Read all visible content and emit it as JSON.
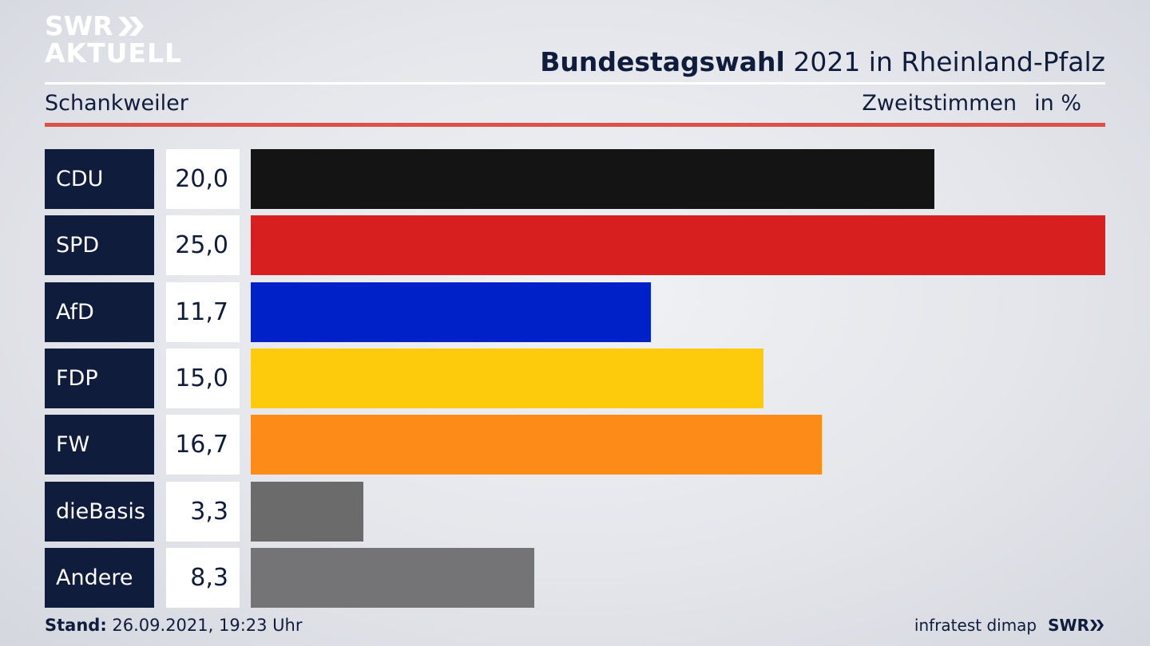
{
  "logo": {
    "line1": "SWR",
    "line2": "AKTUELL"
  },
  "header": {
    "title_bold": "Bundestagswahl",
    "title_rest": " 2021 in Rheinland-Pfalz"
  },
  "subheader": {
    "location": "Schankweiler",
    "metric": "Zweitstimmen",
    "unit": "in %"
  },
  "footer": {
    "stand_label": "Stand:",
    "stand_value": " 26.09.2021, 19:23 Uhr",
    "source": "infratest dimap",
    "brand": "SWR"
  },
  "colors": {
    "navy": "#0f1c3c",
    "accent_red": "#d9534a"
  },
  "chart_data": {
    "type": "bar",
    "orientation": "horizontal",
    "title": "Bundestagswahl 2021 in Rheinland-Pfalz",
    "subtitle": "Schankweiler",
    "ylabel": "Zweitstimmen in %",
    "categories": [
      "CDU",
      "SPD",
      "AfD",
      "FDP",
      "FW",
      "dieBasis",
      "Andere"
    ],
    "values": [
      20.0,
      25.0,
      11.7,
      15.0,
      16.7,
      3.3,
      8.3
    ],
    "value_labels": [
      "20,0",
      "25,0",
      "11,7",
      "15,0",
      "16,7",
      "3,3",
      "8,3"
    ],
    "colors": [
      "#141414",
      "#d71f1f",
      "#0021c8",
      "#fdcb0c",
      "#fc8b17",
      "#6b6b6b",
      "#747476"
    ],
    "xlim": [
      0,
      25
    ]
  }
}
